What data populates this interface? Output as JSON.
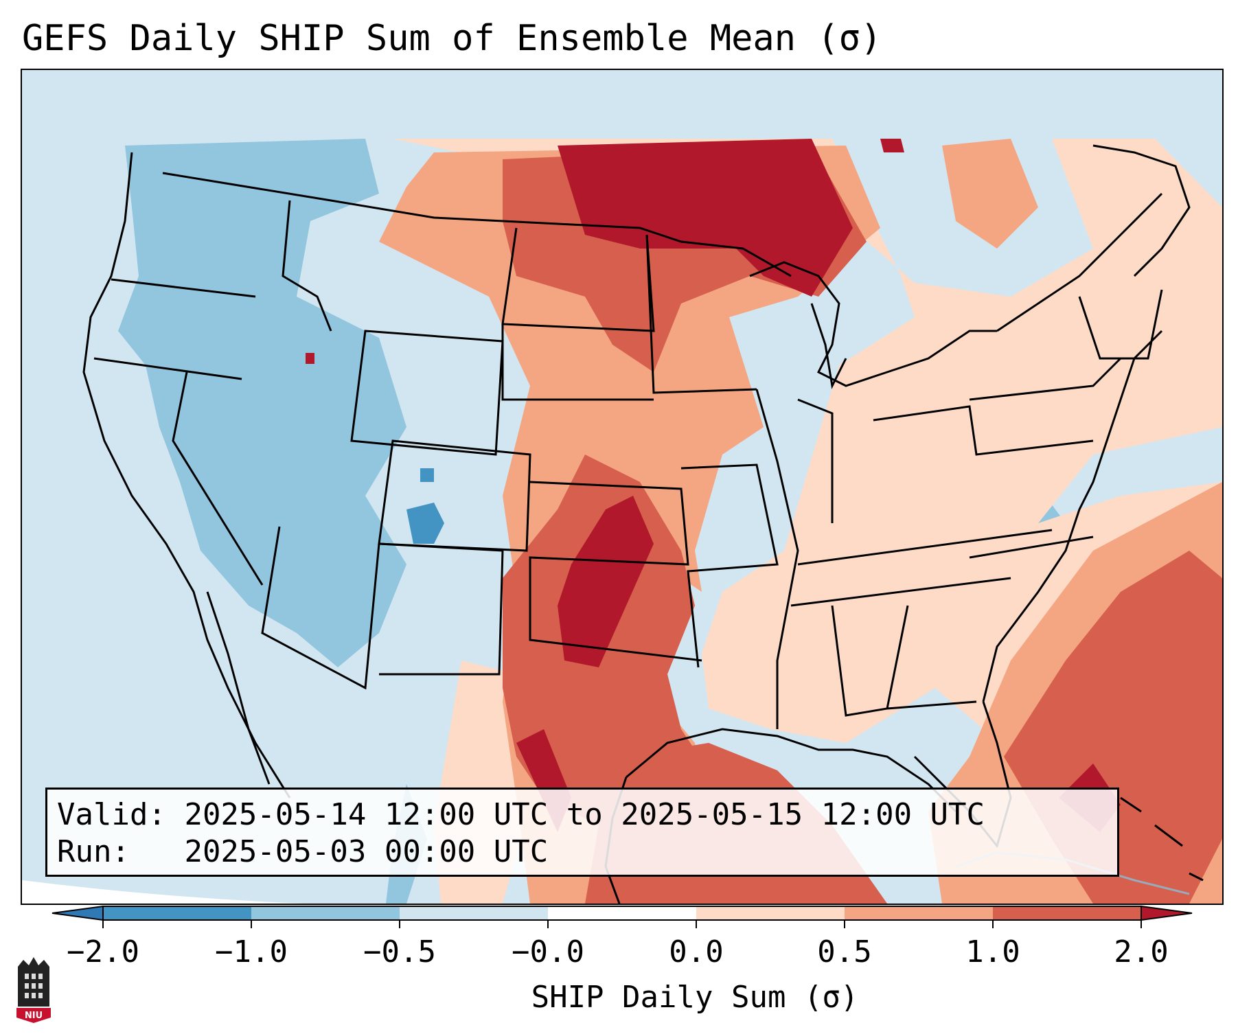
{
  "title": "GEFS Daily SHIP Sum of Ensemble Mean (σ)",
  "info": {
    "valid_label": "Valid:",
    "valid_value": "2025-05-14 12:00 UTC to 2025-05-15 12:00 UTC",
    "run_label": "Run:",
    "run_value": "2025-05-03 00:00 UTC"
  },
  "colorbar": {
    "label": "SHIP Daily Sum (σ)",
    "ticks": [
      "−2.0",
      "−1.0",
      "−0.5",
      "−0.0",
      "0.0",
      "0.5",
      "1.0",
      "2.0"
    ],
    "colors": [
      "#2f79b5",
      "#4393c3",
      "#92c5de",
      "#d1e5f0",
      "#fddbc7",
      "#f4a582",
      "#d6604d",
      "#b2182b"
    ],
    "extend": "both"
  },
  "logo": {
    "text": "NIU",
    "icon": "niu-logo-icon"
  },
  "map": {
    "ocean_color": "#d1e5f0",
    "outside_color": "#ffffff",
    "boundary_color": "#000000"
  }
}
